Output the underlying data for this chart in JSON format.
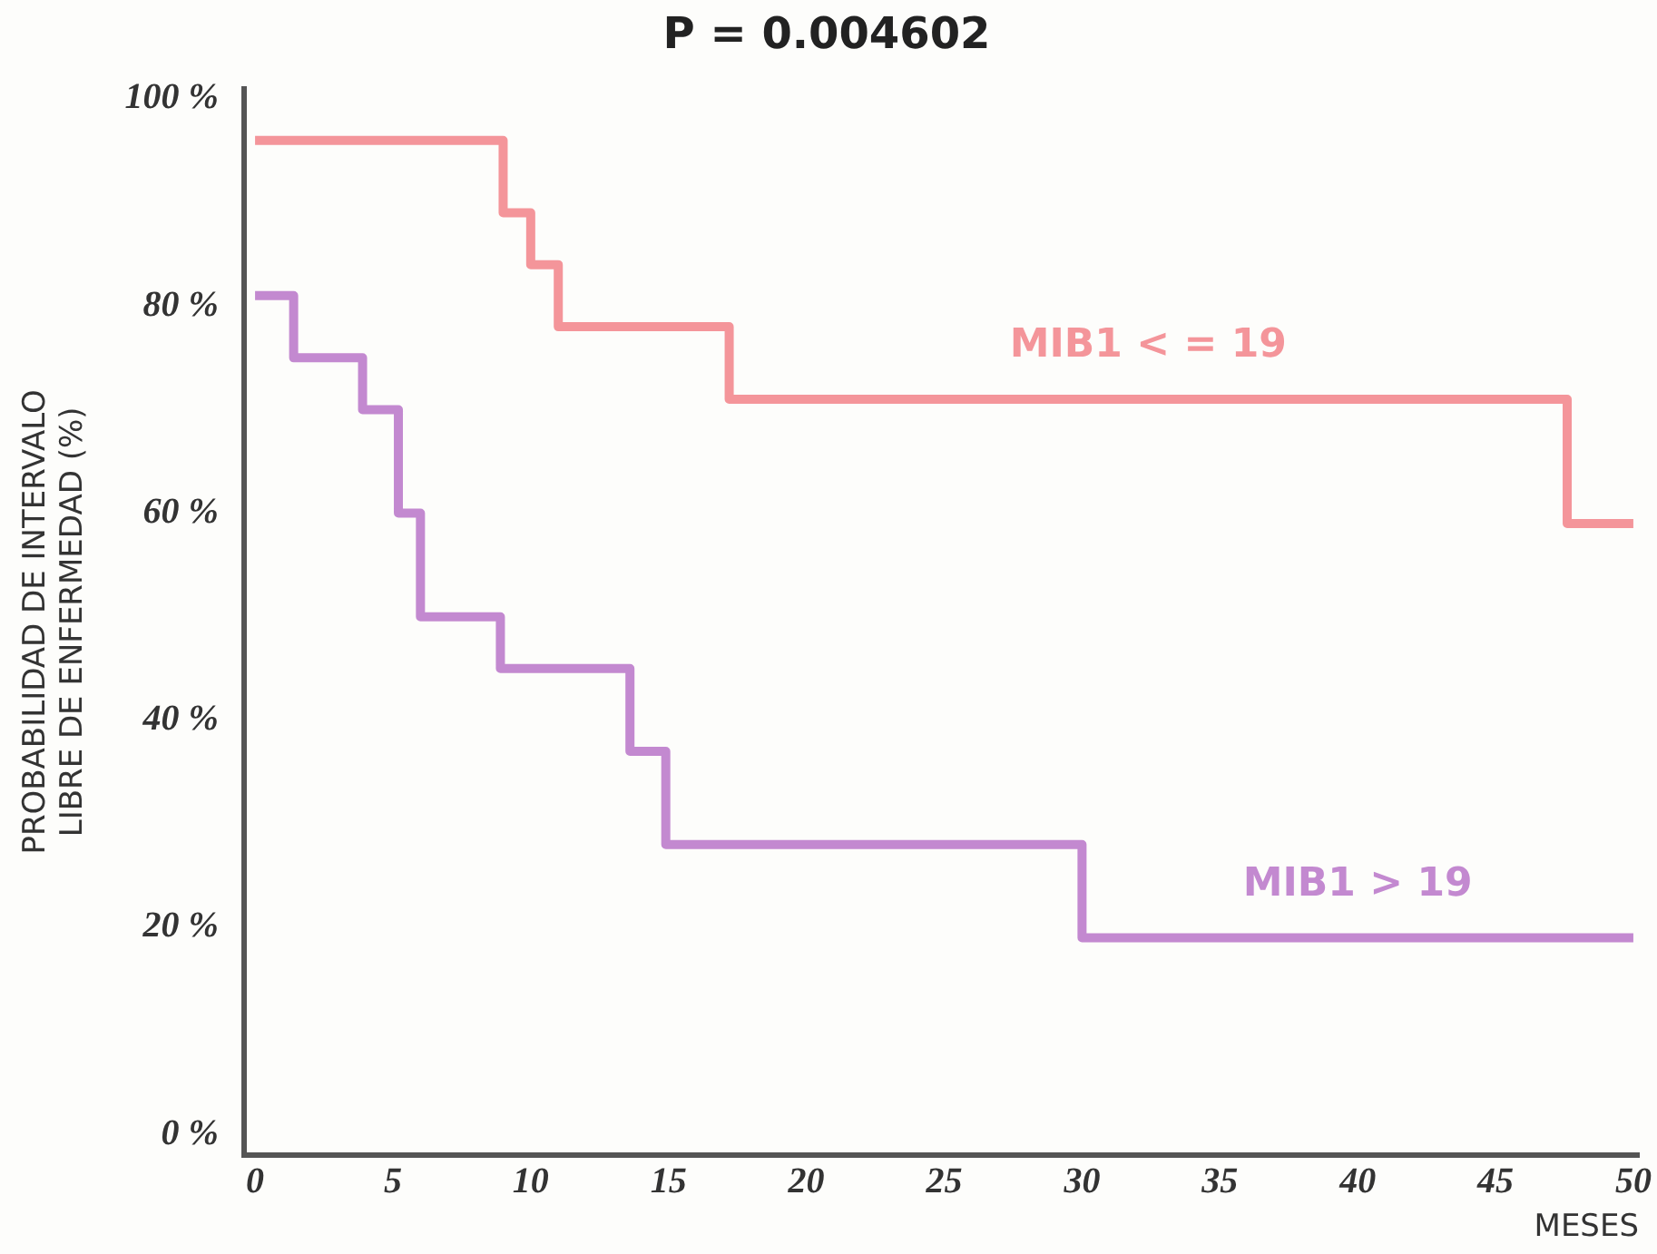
{
  "chart_data": {
    "type": "step",
    "title": "P = 0.004602",
    "xlabel": "MESES",
    "ylabel": "PROBABILIDAD DE INTERVALO\nLIBRE DE ENFERMEDAD (%)",
    "series": [
      {
        "name": "MIB1 < = 19",
        "color": "#f4959a",
        "x": [
          0,
          9,
          10,
          11,
          17.2,
          47.6,
          50
        ],
        "values": [
          96,
          89,
          84,
          78,
          71,
          59,
          59
        ]
      },
      {
        "name": "MIB1 > 19",
        "color": "#c389d0",
        "x": [
          0,
          1.4,
          3.9,
          5.2,
          6,
          8.9,
          13.6,
          14.9,
          30,
          50
        ],
        "values": [
          81,
          75,
          70,
          60,
          50,
          45,
          37,
          28,
          19,
          19
        ]
      }
    ],
    "xlim": [
      -0.4,
      50.2
    ],
    "ylim": [
      -2,
      101
    ],
    "xticks": [
      0,
      5,
      10,
      15,
      20,
      25,
      30,
      35,
      40,
      45,
      50
    ],
    "yticks": [
      {
        "value": 0,
        "label": "0 %"
      },
      {
        "value": 20,
        "label": "20 %"
      },
      {
        "value": 40,
        "label": "40 %"
      },
      {
        "value": 60,
        "label": "60 %"
      },
      {
        "value": 80,
        "label": "80 %"
      },
      {
        "value": 100,
        "label": "100 %"
      }
    ],
    "grid": false,
    "legend": false,
    "marker": "none",
    "line_style": "solid"
  }
}
